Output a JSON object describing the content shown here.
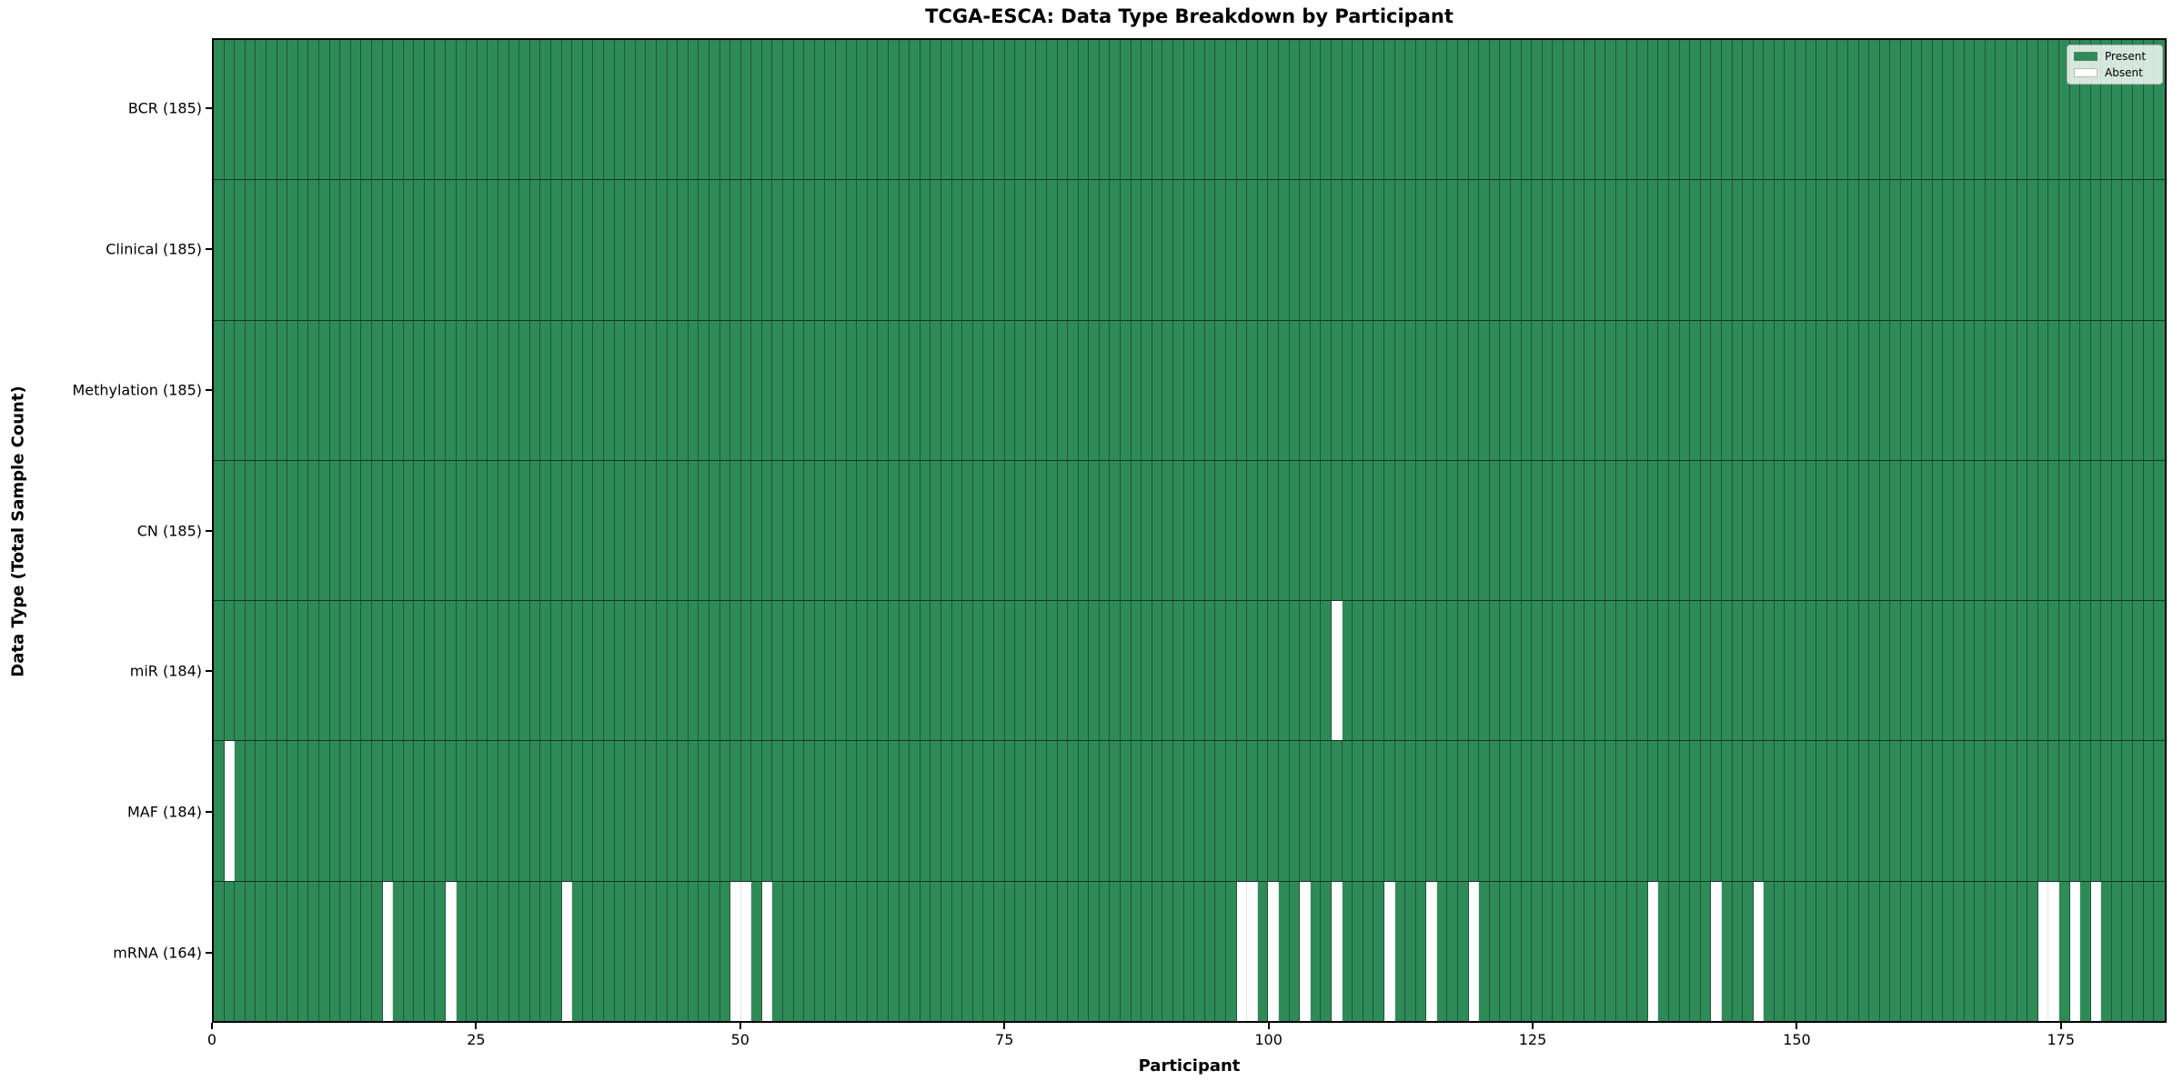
{
  "chart_data": {
    "type": "heatmap",
    "title": "TCGA-ESCA: Data Type Breakdown by Participant",
    "xlabel": "Participant",
    "ylabel": "Data Type (Total Sample Count)",
    "x_range": [
      0,
      185
    ],
    "n_participants": 185,
    "x_ticks": [
      0,
      25,
      50,
      75,
      100,
      125,
      150,
      175
    ],
    "grid": "cell-edges",
    "legend_position": "upper-right",
    "legend": [
      {
        "label": "Present",
        "color": "#2e8b57"
      },
      {
        "label": "Absent",
        "color": "#ffffff"
      }
    ],
    "colors": {
      "present": "#2e8b57",
      "absent": "#ffffff",
      "cell_edge": "rgba(0,0,0,0.38)",
      "row_divider": "rgba(0,0,0,0.62)",
      "spine": "#000000"
    },
    "rows": [
      {
        "label": "BCR (185)",
        "name": "BCR",
        "present_count": 185,
        "absent_participants": []
      },
      {
        "label": "Clinical (185)",
        "name": "Clinical",
        "present_count": 185,
        "absent_participants": []
      },
      {
        "label": "Methylation (185)",
        "name": "Methylation",
        "present_count": 185,
        "absent_participants": []
      },
      {
        "label": "CN (185)",
        "name": "CN",
        "present_count": 185,
        "absent_participants": []
      },
      {
        "label": "miR (184)",
        "name": "miR",
        "present_count": 184,
        "absent_participants": [
          106
        ]
      },
      {
        "label": "MAF (184)",
        "name": "MAF",
        "present_count": 184,
        "absent_participants": [
          1
        ]
      },
      {
        "label": "mRNA (164)",
        "name": "mRNA",
        "present_count": 164,
        "absent_participants": [
          16,
          22,
          33,
          49,
          50,
          52,
          97,
          98,
          100,
          103,
          106,
          111,
          115,
          119,
          136,
          142,
          146,
          173,
          174,
          176,
          178
        ]
      }
    ]
  }
}
